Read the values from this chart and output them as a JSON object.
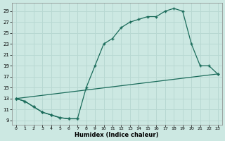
{
  "xlabel": "Humidex (Indice chaleur)",
  "bg_color": "#cce8e2",
  "line_color": "#1a6b5a",
  "grid_color": "#b8d8d2",
  "xlim": [
    -0.5,
    23.5
  ],
  "ylim": [
    8.2,
    30.5
  ],
  "xticks": [
    0,
    1,
    2,
    3,
    4,
    5,
    6,
    7,
    8,
    9,
    10,
    11,
    12,
    13,
    14,
    15,
    16,
    17,
    18,
    19,
    20,
    21,
    22,
    23
  ],
  "yticks": [
    9,
    11,
    13,
    15,
    17,
    19,
    21,
    23,
    25,
    27,
    29
  ],
  "line1_x": [
    0,
    1,
    2,
    3,
    4,
    5,
    6,
    7,
    8,
    9,
    10,
    11,
    12,
    13,
    14,
    15,
    16,
    17,
    18,
    19,
    20,
    21,
    22,
    23
  ],
  "line1_y": [
    13,
    12.5,
    11.5,
    10.5,
    10,
    9.5,
    9.3,
    9.3,
    15,
    19,
    23,
    24,
    26,
    27,
    27.5,
    28,
    28,
    29,
    29.5,
    29,
    23,
    19,
    19,
    17.5
  ],
  "line2_x": [
    0,
    1,
    2,
    3,
    4,
    5,
    6,
    7
  ],
  "line2_y": [
    13,
    12.5,
    11.5,
    10.5,
    10,
    9.5,
    9.3,
    9.3
  ],
  "line3_x": [
    0,
    23
  ],
  "line3_y": [
    13,
    17.5
  ]
}
